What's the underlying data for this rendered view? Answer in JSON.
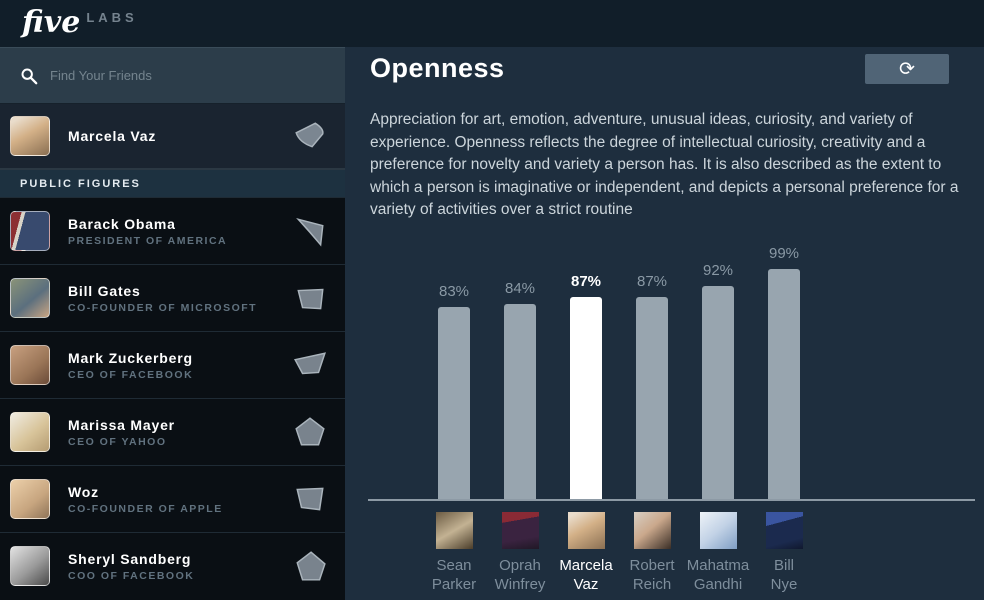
{
  "brand": {
    "name": "five",
    "suffix": "LABS"
  },
  "sidebar": {
    "search": {
      "placeholder": "Find Your Friends"
    },
    "me": {
      "name": "Marcela Vaz"
    },
    "section_label": "PUBLIC FIGURES",
    "figures": [
      {
        "name": "Barack Obama",
        "title": "PRESIDENT OF AMERICA"
      },
      {
        "name": "Bill Gates",
        "title": "CO-FOUNDER OF MICROSOFT"
      },
      {
        "name": "Mark Zuckerberg",
        "title": "CEO OF FACEBOOK"
      },
      {
        "name": "Marissa Mayer",
        "title": "CEO OF YAHOO"
      },
      {
        "name": "Woz",
        "title": "CO-FOUNDER OF APPLE"
      },
      {
        "name": "Sheryl Sandberg",
        "title": "COO OF FACEBOOK"
      }
    ]
  },
  "main": {
    "title": "Openness",
    "refresh_icon": "⟳",
    "description": "Appreciation for art, emotion, adventure, unusual ideas, curiosity, and variety of experience. Openness reflects the degree of intellectual curiosity, creativity and a preference for novelty and variety a person has. It is also described as the extent to which a person is imaginative or independent, and depicts a personal preference for a variety of activities over a strict routine"
  },
  "chart_data": {
    "type": "bar",
    "title": "Openness",
    "categories": [
      "Sean Parker",
      "Oprah Winfrey",
      "Marcela Vaz",
      "Robert Reich",
      "Mahatma Gandhi",
      "Bill Nye"
    ],
    "values": [
      83,
      84,
      87,
      87,
      92,
      99
    ],
    "value_labels": [
      "83%",
      "84%",
      "87%",
      "87%",
      "92%",
      "99%"
    ],
    "tick_lines": [
      [
        "Sean",
        "Parker"
      ],
      [
        "Oprah",
        "Winfrey"
      ],
      [
        "Marcela",
        "Vaz"
      ],
      [
        "Robert",
        "Reich"
      ],
      [
        "Mahatma",
        "Gandhi"
      ],
      [
        "Bill",
        "Nye"
      ]
    ],
    "highlight_index": 2,
    "ylim": [
      0,
      100
    ],
    "grid": false,
    "legend": false,
    "bar_color": "#98a5af",
    "highlight_color": "#ffffff",
    "background_color": "#1e2e3e"
  }
}
